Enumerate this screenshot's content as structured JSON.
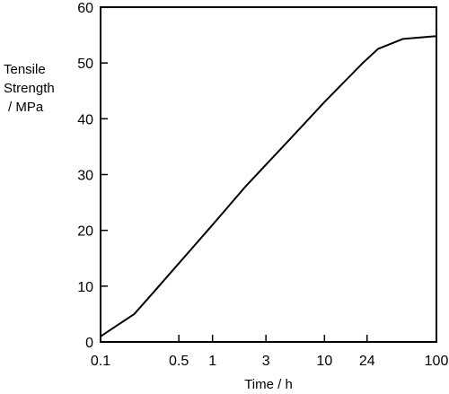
{
  "chart_data": {
    "type": "line",
    "title": "",
    "xlabel": "Time / h",
    "ylabel": [
      "Tensile",
      "Strength",
      "/ MPa"
    ],
    "x_scale": "log",
    "xlim": [
      0.1,
      100
    ],
    "ylim": [
      0,
      60
    ],
    "x_ticks": [
      0.1,
      0.5,
      1,
      3,
      10,
      24,
      100
    ],
    "x_tick_labels": [
      "0.1",
      "0.5",
      "1",
      "3",
      "10",
      "24",
      "100"
    ],
    "y_ticks": [
      0,
      10,
      20,
      30,
      40,
      50,
      60
    ],
    "y_tick_labels": [
      "0",
      "10",
      "20",
      "30",
      "40",
      "50",
      "60"
    ],
    "grid": false,
    "legend": "none",
    "series": [
      {
        "x": [
          0.1,
          0.2,
          0.3,
          1,
          2,
          5,
          10,
          22,
          30,
          50,
          100
        ],
        "y": [
          1,
          5,
          9,
          21,
          28,
          36.5,
          43,
          50,
          52.5,
          54.3,
          54.8
        ]
      }
    ]
  }
}
